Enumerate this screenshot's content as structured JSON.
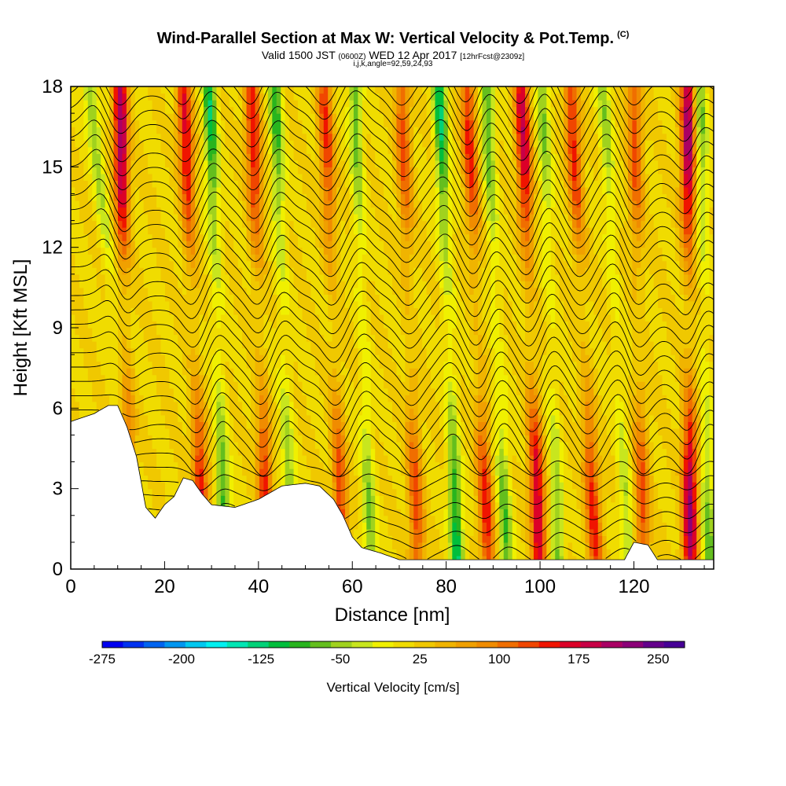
{
  "title": {
    "main": "Wind-Parallel Section at Max W: Vertical Velocity & Pot.Temp.",
    "mark": "(C)",
    "valid_prefix": "Valid 1500 JST",
    "valid_utc": "(0600Z)",
    "valid_date": "WED 12 Apr 2017",
    "forecast": "[12hrFcst@2309z]",
    "indices": "i,j,k,angle=92,59,24,93"
  },
  "chart_data": {
    "type": "heatmap",
    "xlabel": "Distance [nm]",
    "ylabel": "Height [Kft MSL]",
    "xlim": [
      0,
      137
    ],
    "ylim": [
      0,
      18
    ],
    "x_ticks": [
      0,
      20,
      40,
      60,
      80,
      100,
      120
    ],
    "y_ticks": [
      0,
      3,
      6,
      9,
      12,
      15,
      18
    ],
    "colorbar": {
      "label": "Vertical Velocity [cm/s]",
      "min": -275,
      "max": 275,
      "tick_labels": [
        "-275",
        "-200",
        "-125",
        "-50",
        "25",
        "100",
        "175",
        "250"
      ],
      "tick_values": [
        -275,
        -200,
        -125,
        -50,
        25,
        100,
        175,
        250
      ],
      "colors": [
        "#0000f0",
        "#0032f0",
        "#0064f0",
        "#0096f0",
        "#00c8f0",
        "#00f0f0",
        "#00e6b4",
        "#00d278",
        "#00be3c",
        "#28b41e",
        "#64be1e",
        "#a0d21e",
        "#c8e61e",
        "#f0f000",
        "#f0dc00",
        "#f0c800",
        "#f0b400",
        "#f0a000",
        "#f08c00",
        "#f06e00",
        "#f04600",
        "#f01400",
        "#dc0028",
        "#c80046",
        "#aa0064",
        "#8c0078",
        "#64008c",
        "#460096"
      ]
    },
    "terrain_kft": [
      [
        0,
        5.5
      ],
      [
        5,
        5.8
      ],
      [
        8,
        6.1
      ],
      [
        10,
        6.1
      ],
      [
        12,
        5.3
      ],
      [
        14,
        4.2
      ],
      [
        16,
        2.3
      ],
      [
        18,
        1.9
      ],
      [
        20,
        2.4
      ],
      [
        22,
        2.7
      ],
      [
        24,
        3.4
      ],
      [
        26,
        3.3
      ],
      [
        28,
        2.8
      ],
      [
        30,
        2.4
      ],
      [
        35,
        2.3
      ],
      [
        40,
        2.6
      ],
      [
        45,
        3.1
      ],
      [
        50,
        3.2
      ],
      [
        53,
        3.1
      ],
      [
        56,
        2.6
      ],
      [
        58,
        2.0
      ],
      [
        60,
        1.2
      ],
      [
        62,
        0.8
      ],
      [
        66,
        0.6
      ],
      [
        70,
        0.35
      ],
      [
        80,
        0.35
      ],
      [
        100,
        0.35
      ],
      [
        118,
        0.35
      ],
      [
        120,
        1.0
      ],
      [
        123,
        0.9
      ],
      [
        125,
        0.35
      ],
      [
        137,
        0.35
      ]
    ],
    "updraft_bands": [
      {
        "x_base": 12.5,
        "x_top": 10.5,
        "w_max": 200
      },
      {
        "x_base": 28.5,
        "x_top": 24.0,
        "w_max": 150
      },
      {
        "x_base": 42.0,
        "x_top": 38.5,
        "w_max": 140
      },
      {
        "x_base": 58.0,
        "x_top": 54.0,
        "w_max": 120
      },
      {
        "x_base": 74.0,
        "x_top": 70.5,
        "w_max": 110
      },
      {
        "x_base": 89.0,
        "x_top": 84.5,
        "w_max": 130
      },
      {
        "x_base": 100.0,
        "x_top": 96.0,
        "w_max": 170
      },
      {
        "x_base": 112.0,
        "x_top": 106.5,
        "w_max": 130
      },
      {
        "x_base": 122.0,
        "x_top": 120.0,
        "w_max": 110
      },
      {
        "x_base": 132.0,
        "x_top": 131.5,
        "w_max": 200
      }
    ],
    "downdraft_bands": [
      {
        "x_base": 15.0,
        "x_top": 4.0,
        "w_min": -80
      },
      {
        "x_base": 33.0,
        "x_top": 29.5,
        "w_min": -130
      },
      {
        "x_base": 47.0,
        "x_top": 43.5,
        "w_min": -110
      },
      {
        "x_base": 64.0,
        "x_top": 60.5,
        "w_min": -90
      },
      {
        "x_base": 82.5,
        "x_top": 78.5,
        "w_min": -140
      },
      {
        "x_base": 93.0,
        "x_top": 88.5,
        "w_min": -100
      },
      {
        "x_base": 104.0,
        "x_top": 100.5,
        "w_min": -80
      },
      {
        "x_base": 119.0,
        "x_top": 113.5,
        "w_min": -70
      },
      {
        "x_base": 136.0,
        "x_top": 134.0,
        "w_min": -90
      }
    ],
    "theta_contours": {
      "levels_count": 34,
      "amplitude_kft": 0.9
    }
  }
}
